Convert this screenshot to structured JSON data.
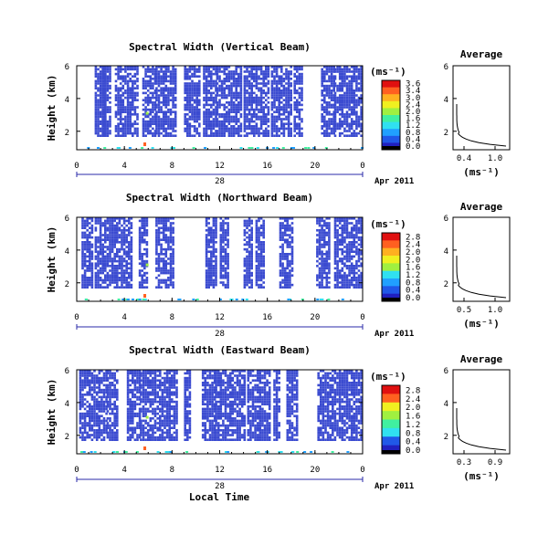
{
  "chart_data": [
    {
      "type": "heatmap",
      "title": "Spectral Width (Vertical Beam)",
      "ylabel": "Height (km)",
      "yticks": [
        "6",
        "4",
        "2"
      ],
      "xticks": [
        "0",
        "4",
        "8",
        "12",
        "16",
        "20",
        "0"
      ],
      "xlim": [
        0,
        24
      ],
      "date_day": "28",
      "date_month_year": "Apr 2011",
      "colorbar": {
        "label": "(ms⁻¹)",
        "ticks": [
          "3.6",
          "3.4",
          "3.0",
          "2.4",
          "2.0",
          "1.6",
          "1.2",
          "0.8",
          "0.4",
          "0.0"
        ]
      },
      "seed": 11,
      "columns": [
        [
          1.5,
          2.3
        ],
        [
          2.1,
          2.8
        ],
        [
          3.2,
          4.0
        ],
        [
          4.2,
          5.1
        ],
        [
          5.5,
          6.5
        ],
        [
          6.6,
          8.2
        ],
        [
          9.0,
          10.2
        ],
        [
          10.6,
          11.6
        ],
        [
          11.7,
          13.8
        ],
        [
          14.0,
          15.2
        ],
        [
          15.4,
          16.0
        ],
        [
          16.3,
          17.9
        ],
        [
          18.2,
          18.8
        ],
        [
          20.5,
          21.6
        ],
        [
          21.6,
          23.8
        ]
      ]
    },
    {
      "type": "heatmap",
      "title": "Spectral Width (Northward Beam)",
      "ylabel": "Height (km)",
      "yticks": [
        "6",
        "4",
        "2"
      ],
      "xticks": [
        "0",
        "4",
        "8",
        "12",
        "16",
        "20",
        "0"
      ],
      "xlim": [
        0,
        24
      ],
      "date_day": "28",
      "date_month_year": "Apr 2011",
      "colorbar": {
        "label": "(ms⁻¹)",
        "ticks": [
          "2.8",
          "2.4",
          "2.0",
          "2.0",
          "1.6",
          "1.2",
          "0.8",
          "0.4",
          "0.0"
        ]
      },
      "seed": 23,
      "columns": [
        [
          0.4,
          1.3
        ],
        [
          1.5,
          2.2
        ],
        [
          2.3,
          4.6
        ],
        [
          5.2,
          5.8
        ],
        [
          6.6,
          8.1
        ],
        [
          10.8,
          11.6
        ],
        [
          12.0,
          12.6
        ],
        [
          14.0,
          14.6
        ],
        [
          15.0,
          15.7
        ],
        [
          17.0,
          18.0
        ],
        [
          20.1,
          21.2
        ],
        [
          21.6,
          23.8
        ]
      ]
    },
    {
      "type": "heatmap",
      "title": "Spectral Width (Eastward Beam)",
      "ylabel": "Height (km)",
      "yticks": [
        "6",
        "4",
        "2"
      ],
      "xticks": [
        "0",
        "4",
        "8",
        "12",
        "16",
        "20",
        "0"
      ],
      "xlim": [
        0,
        24
      ],
      "date_day": "28",
      "date_month_year": "Apr 2011",
      "colorbar": {
        "label": "(ms⁻¹)",
        "ticks": [
          "2.8",
          "2.4",
          "2.0",
          "1.6",
          "1.2",
          "0.8",
          "0.4",
          "0.0"
        ]
      },
      "seed": 37,
      "columns": [
        [
          0.2,
          1.5
        ],
        [
          1.6,
          2.4
        ],
        [
          2.5,
          3.4
        ],
        [
          4.2,
          5.2
        ],
        [
          5.3,
          6.6
        ],
        [
          6.7,
          8.3
        ],
        [
          9.0,
          9.5
        ],
        [
          10.5,
          11.5
        ],
        [
          11.6,
          14.0
        ],
        [
          14.3,
          16.2
        ],
        [
          16.5,
          17.0
        ],
        [
          17.6,
          18.5
        ],
        [
          20.2,
          22.0
        ],
        [
          22.2,
          23.8
        ]
      ]
    }
  ],
  "profiles": [
    {
      "title": "Average",
      "yticks": [
        "6",
        "4",
        "2"
      ],
      "xticks": [
        "0.4",
        "1.0"
      ],
      "xlabel": "(ms⁻¹)"
    },
    {
      "title": "Average",
      "yticks": [
        "6",
        "4",
        "2"
      ],
      "xticks": [
        "0.5",
        "1.0"
      ],
      "xlabel": "(ms⁻¹)"
    },
    {
      "title": "Average",
      "yticks": [
        "6",
        "4",
        "2"
      ],
      "xticks": [
        "0.3",
        "0.9"
      ],
      "xlabel": "(ms⁻¹)"
    }
  ],
  "footer_xlabel": "Local Time",
  "colors": {
    "cell": "#3b4bd0",
    "axis": "#000000",
    "dateline": "#2a2aa8"
  }
}
